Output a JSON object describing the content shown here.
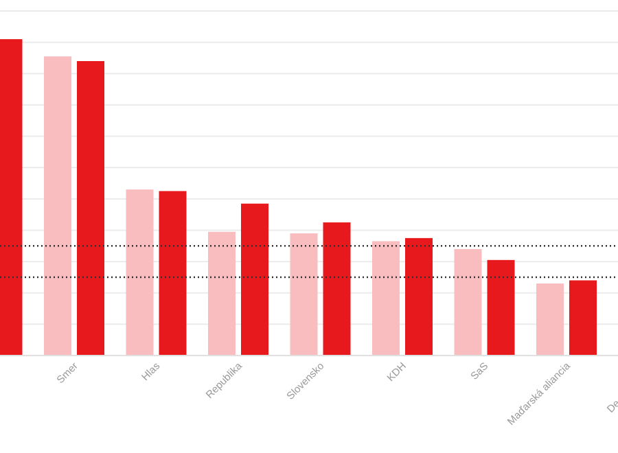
{
  "chart_data": {
    "type": "bar",
    "categories": [
      null,
      "Smer",
      "Hlas",
      "Republika",
      "Slovensko",
      "KDH",
      "SaS",
      "Maďarská aliancia",
      "De"
    ],
    "series": [
      {
        "color": "#f9bcbf",
        "values": [
          null,
          19.1,
          10.6,
          7.9,
          7.8,
          7.3,
          6.8,
          4.6,
          null
        ]
      },
      {
        "color": "#e8191c",
        "values": [
          20.2,
          18.8,
          10.5,
          9.7,
          8.5,
          7.5,
          6.1,
          4.8,
          null
        ]
      }
    ],
    "ylim": [
      0,
      22
    ],
    "yticks": [
      0,
      2,
      4,
      6,
      8,
      10,
      12,
      14,
      16,
      18,
      20,
      22
    ],
    "grid": true,
    "thresholds": [
      5,
      7
    ]
  }
}
